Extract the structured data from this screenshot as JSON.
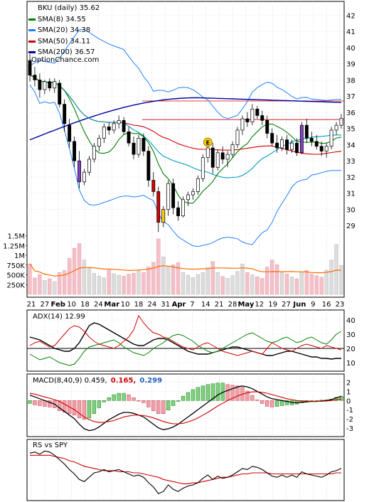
{
  "chart_data": [
    {
      "type": "candlestick",
      "title": "BKU (daily) 35.62",
      "ticker": "BKU",
      "watermark": "OptionChance.com",
      "ylim": [
        28,
        42.5
      ],
      "y_ticks": [
        29,
        30,
        31,
        32,
        33,
        34,
        35,
        36,
        37,
        38,
        39,
        40,
        41,
        42
      ],
      "x_ticks": [
        "21",
        "27",
        "Feb",
        "10",
        "18",
        "24",
        "Mar",
        "10",
        "18",
        "24",
        "31",
        "Apr",
        "7",
        "14",
        "21",
        "28",
        "May",
        "12",
        "19",
        "27",
        "Jun",
        "9",
        "16",
        "23"
      ],
      "legend": [
        {
          "label": "BKU (daily) 35.62",
          "color": "#000000"
        },
        {
          "label": "SMA(8) 34.55",
          "color": "#008000"
        },
        {
          "label": "SMA(20) 34.38",
          "color": "#2080ff"
        },
        {
          "label": "SMA(50) 34.11",
          "color": "#d00000"
        },
        {
          "label": "SMA(200) 36.57",
          "color": "#0000a0"
        }
      ],
      "horizontal_lines": [
        36.7,
        35.55
      ],
      "ohlc": [
        {
          "o": 39.2,
          "h": 39.6,
          "l": 37.9,
          "c": 38.3
        },
        {
          "o": 38.3,
          "h": 38.8,
          "l": 37.6,
          "c": 38.0
        },
        {
          "o": 38.0,
          "h": 38.4,
          "l": 36.9,
          "c": 37.4
        },
        {
          "o": 37.4,
          "h": 38.0,
          "l": 37.1,
          "c": 37.9
        },
        {
          "o": 37.9,
          "h": 38.1,
          "l": 37.3,
          "c": 37.5
        },
        {
          "o": 37.5,
          "h": 38.1,
          "l": 37.2,
          "c": 37.9
        },
        {
          "o": 37.8,
          "h": 38.0,
          "l": 36.3,
          "c": 36.5
        },
        {
          "o": 36.5,
          "h": 36.8,
          "l": 34.8,
          "c": 35.3
        },
        {
          "o": 35.2,
          "h": 35.6,
          "l": 33.8,
          "c": 34.2
        },
        {
          "o": 34.2,
          "h": 34.5,
          "l": 32.6,
          "c": 33.0
        },
        {
          "o": 33.0,
          "h": 33.6,
          "l": 31.3,
          "c": 31.7
        },
        {
          "o": 31.7,
          "h": 32.5,
          "l": 31.5,
          "c": 32.3
        },
        {
          "o": 32.3,
          "h": 33.3,
          "l": 32.1,
          "c": 33.1
        },
        {
          "o": 33.1,
          "h": 34.1,
          "l": 32.9,
          "c": 33.9
        },
        {
          "o": 33.9,
          "h": 34.6,
          "l": 33.6,
          "c": 34.4
        },
        {
          "o": 34.4,
          "h": 35.3,
          "l": 34.1,
          "c": 35.1
        },
        {
          "o": 35.1,
          "h": 35.4,
          "l": 34.6,
          "c": 34.9
        },
        {
          "o": 34.9,
          "h": 35.5,
          "l": 34.7,
          "c": 35.3
        },
        {
          "o": 35.3,
          "h": 35.8,
          "l": 35.0,
          "c": 35.5
        },
        {
          "o": 35.5,
          "h": 35.7,
          "l": 34.6,
          "c": 34.8
        },
        {
          "o": 34.8,
          "h": 35.1,
          "l": 33.9,
          "c": 34.1
        },
        {
          "o": 34.1,
          "h": 34.5,
          "l": 33.1,
          "c": 33.4
        },
        {
          "o": 33.4,
          "h": 34.6,
          "l": 33.2,
          "c": 34.4
        },
        {
          "o": 34.4,
          "h": 34.7,
          "l": 33.3,
          "c": 33.6
        },
        {
          "o": 33.6,
          "h": 33.9,
          "l": 31.4,
          "c": 31.8
        },
        {
          "o": 31.8,
          "h": 32.3,
          "l": 30.8,
          "c": 31.1
        },
        {
          "o": 31.1,
          "h": 31.4,
          "l": 28.6,
          "c": 29.2
        },
        {
          "o": 29.2,
          "h": 30.2,
          "l": 28.9,
          "c": 30.0
        },
        {
          "o": 30.0,
          "h": 31.8,
          "l": 29.6,
          "c": 31.6
        },
        {
          "o": 31.6,
          "h": 31.9,
          "l": 29.7,
          "c": 30.1
        },
        {
          "o": 30.1,
          "h": 30.5,
          "l": 29.3,
          "c": 29.6
        },
        {
          "o": 29.6,
          "h": 30.8,
          "l": 29.5,
          "c": 30.6
        },
        {
          "o": 30.6,
          "h": 31.1,
          "l": 30.2,
          "c": 30.9
        },
        {
          "o": 30.9,
          "h": 31.3,
          "l": 30.6,
          "c": 31.1
        },
        {
          "o": 31.1,
          "h": 32.1,
          "l": 30.9,
          "c": 31.9
        },
        {
          "o": 31.9,
          "h": 33.4,
          "l": 31.7,
          "c": 33.2
        },
        {
          "o": 33.2,
          "h": 34.0,
          "l": 32.9,
          "c": 33.8
        },
        {
          "o": 33.8,
          "h": 34.1,
          "l": 32.2,
          "c": 32.6
        },
        {
          "o": 32.6,
          "h": 33.7,
          "l": 32.4,
          "c": 33.5
        },
        {
          "o": 33.5,
          "h": 33.9,
          "l": 32.8,
          "c": 33.1
        },
        {
          "o": 33.1,
          "h": 33.6,
          "l": 32.6,
          "c": 33.4
        },
        {
          "o": 33.4,
          "h": 34.2,
          "l": 33.2,
          "c": 34.0
        },
        {
          "o": 34.0,
          "h": 35.1,
          "l": 33.8,
          "c": 34.9
        },
        {
          "o": 34.9,
          "h": 35.8,
          "l": 34.6,
          "c": 35.6
        },
        {
          "o": 35.6,
          "h": 36.0,
          "l": 35.1,
          "c": 35.4
        },
        {
          "o": 35.4,
          "h": 36.5,
          "l": 35.2,
          "c": 36.2
        },
        {
          "o": 36.2,
          "h": 36.4,
          "l": 35.6,
          "c": 35.8
        },
        {
          "o": 35.8,
          "h": 36.1,
          "l": 35.2,
          "c": 35.5
        },
        {
          "o": 35.5,
          "h": 35.8,
          "l": 34.4,
          "c": 34.7
        },
        {
          "o": 34.7,
          "h": 35.0,
          "l": 33.9,
          "c": 34.1
        },
        {
          "o": 34.1,
          "h": 34.6,
          "l": 33.5,
          "c": 33.8
        },
        {
          "o": 33.8,
          "h": 34.5,
          "l": 33.6,
          "c": 34.3
        },
        {
          "o": 34.3,
          "h": 34.6,
          "l": 33.4,
          "c": 33.7
        },
        {
          "o": 33.7,
          "h": 34.3,
          "l": 33.5,
          "c": 34.1
        },
        {
          "o": 34.1,
          "h": 34.4,
          "l": 33.3,
          "c": 33.5
        },
        {
          "o": 33.5,
          "h": 35.4,
          "l": 33.4,
          "c": 35.2
        },
        {
          "o": 35.2,
          "h": 35.6,
          "l": 34.1,
          "c": 34.4
        },
        {
          "o": 34.4,
          "h": 34.8,
          "l": 33.9,
          "c": 34.2
        },
        {
          "o": 34.2,
          "h": 34.6,
          "l": 33.7,
          "c": 33.9
        },
        {
          "o": 33.9,
          "h": 34.2,
          "l": 33.3,
          "c": 33.6
        },
        {
          "o": 33.6,
          "h": 34.1,
          "l": 33.2,
          "c": 33.9
        },
        {
          "o": 33.9,
          "h": 35.1,
          "l": 33.7,
          "c": 34.9
        },
        {
          "o": 34.9,
          "h": 35.4,
          "l": 34.6,
          "c": 35.2
        },
        {
          "o": 35.2,
          "h": 35.9,
          "l": 35.0,
          "c": 35.62
        }
      ],
      "volume_ticks": [
        "1.5M",
        "1.25M",
        "1M",
        "750K",
        "500K",
        "250K"
      ],
      "volume": [
        780,
        420,
        510,
        360,
        400,
        330,
        560,
        610,
        920,
        1180,
        1300,
        880,
        690,
        540,
        470,
        420,
        620,
        530,
        490,
        470,
        520,
        540,
        610,
        560,
        700,
        820,
        1420,
        960,
        720,
        760,
        810,
        560,
        490,
        430,
        510,
        560,
        690,
        840,
        560,
        460,
        410,
        480,
        590,
        780,
        560,
        500,
        450,
        410,
        700,
        880,
        760,
        560,
        520,
        450,
        400,
        560,
        610,
        520,
        480,
        440,
        620,
        880,
        1280,
        740
      ]
    },
    {
      "type": "line",
      "title": "ADX(14) 12.99",
      "y_ticks": [
        10,
        20,
        30,
        40
      ],
      "reference_line": 20,
      "series": [
        {
          "name": "ADX(14)",
          "color": "#000000",
          "values": [
            28,
            27,
            26,
            24,
            22,
            20,
            19,
            18,
            18,
            20,
            24,
            30,
            36,
            38,
            37,
            35,
            33,
            31,
            29,
            27,
            25,
            23,
            22,
            22,
            24,
            26,
            27,
            27,
            26,
            24,
            22,
            20,
            18,
            17,
            16,
            16,
            16,
            17,
            18,
            19,
            20,
            21,
            21,
            20,
            19,
            18,
            17,
            16,
            15,
            15,
            16,
            17,
            18,
            18,
            17,
            16,
            15,
            14,
            14,
            13,
            13,
            12.5,
            13,
            12.99
          ]
        },
        {
          "color": "#008000",
          "values": [
            16,
            14,
            12,
            13,
            14,
            12,
            10,
            9,
            8,
            9,
            13,
            18,
            21,
            22,
            23,
            24,
            25,
            26,
            24,
            21,
            19,
            17,
            16,
            15,
            17,
            20,
            22,
            24,
            27,
            29,
            30,
            29,
            27,
            25,
            22,
            20,
            18,
            17,
            18,
            20,
            22,
            24,
            26,
            28,
            30,
            31,
            29,
            27,
            25,
            24,
            25,
            27,
            28,
            26,
            24,
            25,
            27,
            28,
            26,
            24,
            23,
            26,
            30,
            32
          ]
        },
        {
          "color": "#d00000",
          "values": [
            22,
            24,
            25,
            23,
            21,
            22,
            26,
            30,
            34,
            36,
            35,
            32,
            28,
            25,
            23,
            22,
            21,
            20,
            22,
            25,
            28,
            33,
            43,
            38,
            34,
            31,
            30,
            28,
            27,
            25,
            23,
            21,
            20,
            19,
            21,
            23,
            24,
            22,
            20,
            18,
            17,
            16,
            15,
            16,
            17,
            18,
            17,
            16,
            20,
            24,
            22,
            20,
            19,
            18,
            20,
            22,
            23,
            22,
            21,
            20,
            22,
            21,
            20,
            19
          ]
        }
      ]
    },
    {
      "type": "bar",
      "title": "MACD(8,40,9) 0.459,",
      "values_text": [
        "0.165,",
        "0.299"
      ],
      "values_colors": [
        "#d00000",
        "#2060c0"
      ],
      "y_ticks": [
        2,
        1,
        0,
        -1,
        -2,
        -3
      ],
      "series": [
        {
          "name": "MACD(8,40,9)",
          "color": "#000000",
          "values": [
            0.6,
            0.4,
            0.2,
            0.0,
            -0.2,
            -0.4,
            -0.8,
            -1.2,
            -1.6,
            -2.0,
            -2.6,
            -3.1,
            -3.3,
            -3.2,
            -2.9,
            -2.5,
            -2.1,
            -1.8,
            -1.5,
            -1.3,
            -1.3,
            -1.4,
            -1.6,
            -1.8,
            -2.2,
            -2.6,
            -3.0,
            -3.2,
            -3.1,
            -2.9,
            -2.6,
            -2.2,
            -1.8,
            -1.4,
            -1.0,
            -0.6,
            -0.2,
            0.2,
            0.6,
            0.9,
            1.1,
            1.3,
            1.5,
            1.6,
            1.5,
            1.3,
            1.0,
            0.7,
            0.4,
            0.2,
            0.1,
            0.0,
            -0.1,
            -0.2,
            -0.25,
            -0.2,
            -0.15,
            -0.1,
            -0.1,
            -0.05,
            0.0,
            0.1,
            0.3,
            0.459
          ]
        },
        {
          "color": "#d00000",
          "values": [
            0.8,
            0.7,
            0.55,
            0.4,
            0.25,
            0.1,
            -0.1,
            -0.4,
            -0.7,
            -1.0,
            -1.4,
            -1.8,
            -2.1,
            -2.3,
            -2.4,
            -2.4,
            -2.3,
            -2.2,
            -2.0,
            -1.8,
            -1.7,
            -1.6,
            -1.6,
            -1.65,
            -1.75,
            -1.9,
            -2.1,
            -2.3,
            -2.45,
            -2.55,
            -2.55,
            -2.5,
            -2.35,
            -2.15,
            -1.9,
            -1.6,
            -1.3,
            -0.95,
            -0.6,
            -0.3,
            0.0,
            0.25,
            0.5,
            0.7,
            0.85,
            0.95,
            0.95,
            0.9,
            0.8,
            0.65,
            0.5,
            0.35,
            0.2,
            0.1,
            0.0,
            -0.05,
            -0.08,
            -0.1,
            -0.1,
            -0.08,
            -0.05,
            0.0,
            0.08,
            0.165
          ]
        }
      ]
    },
    {
      "type": "line",
      "title": "RS vs SPY",
      "series": [
        {
          "name": "RS vs SPY",
          "color": "#000000",
          "values": [
            0.62,
            0.63,
            0.61,
            0.64,
            0.63,
            0.6,
            0.56,
            0.52,
            0.47,
            0.43,
            0.38,
            0.36,
            0.4,
            0.44,
            0.45,
            0.47,
            0.45,
            0.46,
            0.47,
            0.45,
            0.43,
            0.41,
            0.42,
            0.4,
            0.35,
            0.31,
            0.25,
            0.27,
            0.33,
            0.29,
            0.27,
            0.3,
            0.32,
            0.33,
            0.35,
            0.39,
            0.42,
            0.38,
            0.41,
            0.39,
            0.4,
            0.42,
            0.45,
            0.48,
            0.47,
            0.5,
            0.49,
            0.47,
            0.44,
            0.41,
            0.4,
            0.42,
            0.4,
            0.42,
            0.4,
            0.45,
            0.43,
            0.42,
            0.41,
            0.4,
            0.42,
            0.45,
            0.46,
            0.48
          ]
        },
        {
          "color": "#d00000",
          "values": [
            0.6,
            0.6,
            0.6,
            0.6,
            0.6,
            0.59,
            0.58,
            0.57,
            0.55,
            0.54,
            0.52,
            0.5,
            0.49,
            0.48,
            0.47,
            0.46,
            0.46,
            0.46,
            0.45,
            0.45,
            0.45,
            0.44,
            0.44,
            0.43,
            0.42,
            0.41,
            0.4,
            0.38,
            0.37,
            0.36,
            0.35,
            0.34,
            0.34,
            0.35,
            0.35,
            0.36,
            0.37,
            0.38,
            0.39,
            0.4,
            0.4,
            0.41,
            0.42,
            0.43,
            0.43,
            0.44,
            0.44,
            0.44,
            0.44,
            0.43,
            0.43,
            0.43,
            0.43,
            0.43,
            0.43,
            0.43,
            0.43,
            0.43,
            0.43,
            0.43,
            0.43,
            0.43,
            0.44,
            0.44
          ]
        }
      ]
    }
  ]
}
